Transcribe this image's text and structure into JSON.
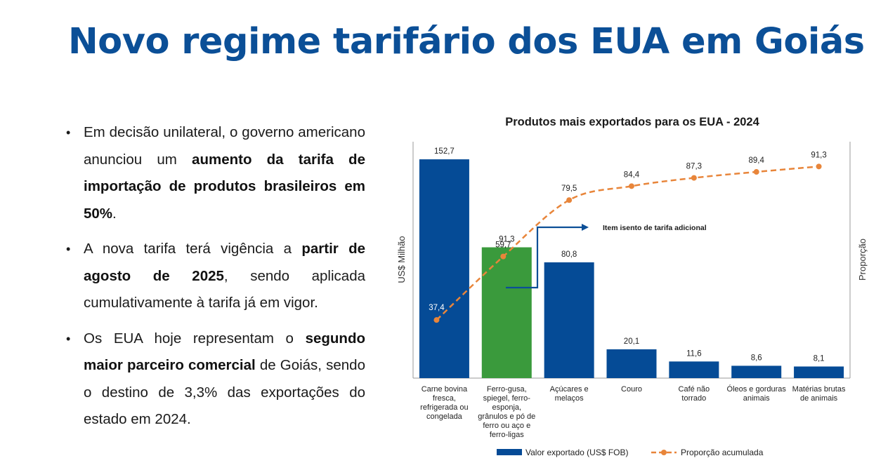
{
  "page": {
    "title": "Novo regime tarifário dos EUA em Goiás"
  },
  "bullets": [
    {
      "parts": [
        {
          "text": "Em decisão unilateral, o governo americano anunciou um ",
          "bold": false
        },
        {
          "text": "aumento da tarifa de importação de produtos brasileiros em 50%",
          "bold": true
        },
        {
          "text": ".",
          "bold": false
        }
      ]
    },
    {
      "parts": [
        {
          "text": "A nova tarifa terá vigência a ",
          "bold": false
        },
        {
          "text": "partir de agosto de 2025",
          "bold": true
        },
        {
          "text": ", sendo aplicada cumulativamente à tarifa já em vigor.",
          "bold": false
        }
      ]
    },
    {
      "parts": [
        {
          "text": "Os EUA hoje representam o ",
          "bold": false
        },
        {
          "text": "segundo maior parceiro comercial",
          "bold": true
        },
        {
          "text": " de Goiás, sendo o destino de 3,3% das exportações do estado em 2024.",
          "bold": false
        }
      ]
    }
  ],
  "chart_data": {
    "type": "bar",
    "title": "Produtos mais exportados para os EUA - 2024",
    "ylabel": "US$ Milhão",
    "y2label": "Proporção",
    "categories": [
      "Carne bovina fresca, refrigerada ou congelada",
      "Ferro-gusa, spiegel, ferro-esponja, grânulos e pó de ferro ou aço e ferro-ligas",
      "Açúcares e melaços",
      "Couro",
      "Café não torrado",
      "Óleos e gorduras animais",
      "Matérias brutas de animais"
    ],
    "category_lines": [
      [
        "Carne bovina",
        "fresca,",
        "refrigerada ou",
        "congelada"
      ],
      [
        "Ferro-gusa,",
        "spiegel, ferro-",
        "esponja,",
        "grânulos e pó de",
        "ferro ou aço e",
        "ferro-ligas"
      ],
      [
        "Açúcares e",
        "melaços"
      ],
      [
        "Couro"
      ],
      [
        "Café não",
        "torrado"
      ],
      [
        "Óleos e gorduras",
        "animais"
      ],
      [
        "Matérias brutas",
        "de animais"
      ]
    ],
    "series": [
      {
        "name": "Valor exportado (US$ FOB)",
        "kind": "bar",
        "values": [
          152.7,
          91.3,
          80.8,
          20.1,
          11.6,
          8.6,
          8.1
        ],
        "labels": [
          "152,7",
          "91,3",
          "80,8",
          "20,1",
          "11,6",
          "8,6",
          "8,1"
        ]
      },
      {
        "name": "Proporção acumulada",
        "kind": "line",
        "values": [
          37.4,
          59.7,
          79.5,
          84.4,
          87.3,
          89.4,
          91.3
        ],
        "labels": [
          "37,4",
          "59,7",
          "79,5",
          "84,4",
          "87,3",
          "89,4",
          "91,3"
        ]
      }
    ],
    "highlight_index": 1,
    "annotation": "Item isento de tarifa adicional",
    "colors": {
      "bar": "#054b96",
      "bar_highlight": "#3a9a3c",
      "line": "#e8853a",
      "annotation": "#0b4f97"
    },
    "legend_position": "bottom"
  }
}
